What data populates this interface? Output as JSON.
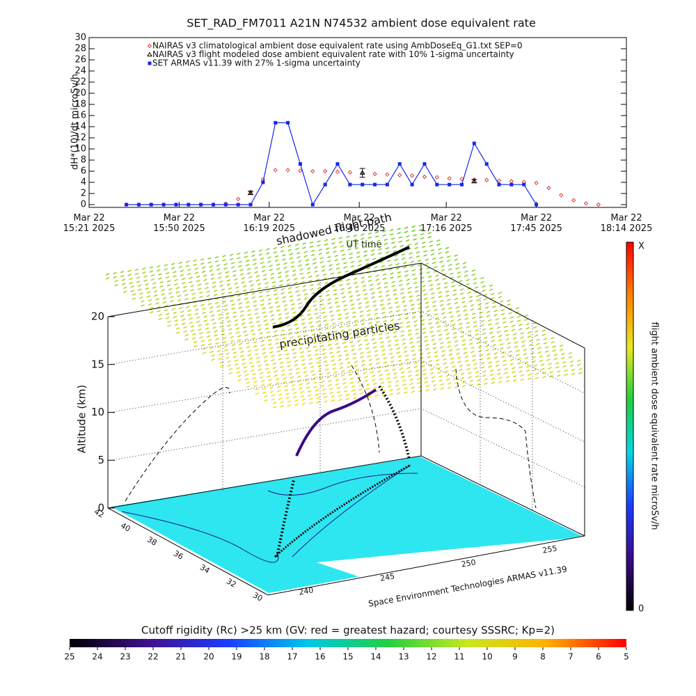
{
  "chart_data": [
    {
      "type": "line",
      "title": "SET_RAD_FM7011  A21N N74532 ambient dose equivalent rate",
      "y_label": "dH*(10)/dt microSv/h",
      "x_label": "UT time",
      "x": [
        "2025-03-22T15:33",
        "2025-03-22T15:37",
        "2025-03-22T15:41",
        "2025-03-22T15:45",
        "2025-03-22T15:49",
        "2025-03-22T15:53",
        "2025-03-22T15:57",
        "2025-03-22T16:01",
        "2025-03-22T16:05",
        "2025-03-22T16:09",
        "2025-03-22T16:13",
        "2025-03-22T16:17",
        "2025-03-22T16:21",
        "2025-03-22T16:25",
        "2025-03-22T16:29",
        "2025-03-22T16:33",
        "2025-03-22T16:37",
        "2025-03-22T16:41",
        "2025-03-22T16:45",
        "2025-03-22T16:49",
        "2025-03-22T16:53",
        "2025-03-22T16:57",
        "2025-03-22T17:01",
        "2025-03-22T17:05",
        "2025-03-22T17:09",
        "2025-03-22T17:13",
        "2025-03-22T17:17",
        "2025-03-22T17:21",
        "2025-03-22T17:25",
        "2025-03-22T17:29",
        "2025-03-22T17:33",
        "2025-03-22T17:37",
        "2025-03-22T17:41",
        "2025-03-22T17:45",
        "2025-03-22T17:49",
        "2025-03-22T17:53",
        "2025-03-22T17:57",
        "2025-03-22T18:01",
        "2025-03-22T18:05"
      ],
      "series": [
        {
          "name": "NAIRAS v3 climatological ambient dose equivalent rate using AmbDoseEq_G1.txt SEP=0",
          "color": "#d42a2a",
          "marker": "diamond-open",
          "line": false,
          "values": [
            0,
            0,
            0,
            0,
            0,
            0,
            0,
            0,
            0.2,
            1,
            2.3,
            4.5,
            6.2,
            6.2,
            6.1,
            6,
            6,
            5.9,
            5.8,
            5.7,
            5.5,
            5.4,
            5.3,
            5.2,
            5,
            4.9,
            4.7,
            4.6,
            4.5,
            4.4,
            4.3,
            4.2,
            4.1,
            3.9,
            3,
            1.7,
            0.8,
            0.2,
            0
          ]
        },
        {
          "name": "NAIRAS v3 flight modeled dose ambient equivalent rate with 10% 1-sigma uncertainty",
          "color": "#000000",
          "marker": "triangle",
          "line": false,
          "values": [
            null,
            null,
            null,
            null,
            null,
            null,
            null,
            null,
            null,
            null,
            2.1,
            null,
            null,
            null,
            null,
            null,
            null,
            null,
            null,
            5.7,
            null,
            null,
            null,
            null,
            null,
            null,
            null,
            null,
            4.2,
            null,
            null,
            null,
            null,
            null,
            null,
            null,
            null,
            null,
            null
          ],
          "errors": [
            null,
            null,
            null,
            null,
            null,
            null,
            null,
            null,
            null,
            null,
            0.3,
            null,
            null,
            null,
            null,
            null,
            null,
            null,
            null,
            0.8,
            null,
            null,
            null,
            null,
            null,
            null,
            null,
            null,
            0.3,
            null,
            null,
            null,
            null,
            null,
            null,
            null,
            null,
            null,
            null
          ]
        },
        {
          "name": "SET ARMAS v11.39 with 27% 1-sigma uncertainty",
          "color": "#1428f0",
          "marker": "square",
          "line": true,
          "values": [
            0,
            0,
            0,
            0,
            0,
            0,
            0,
            0,
            0,
            0,
            0,
            4,
            14.7,
            14.7,
            7.3,
            0,
            3.6,
            7.3,
            3.6,
            3.6,
            3.6,
            3.6,
            7.3,
            3.6,
            7.3,
            3.6,
            3.6,
            3.6,
            11,
            7.3,
            3.6,
            3.6,
            3.6,
            0,
            null,
            null,
            null,
            null,
            null
          ]
        }
      ],
      "xlim": [
        "2025-03-22T15:21",
        "2025-03-22T18:14"
      ],
      "xticks": [
        {
          "value": "2025-03-22T15:21",
          "label": "Mar 22\n15:21 2025"
        },
        {
          "value": "2025-03-22T15:50",
          "label": "Mar 22\n15:50 2025"
        },
        {
          "value": "2025-03-22T16:19",
          "label": "Mar 22\n16:19 2025"
        },
        {
          "value": "2025-03-22T16:48",
          "label": "Mar 22\n16:48 2025"
        },
        {
          "value": "2025-03-22T17:16",
          "label": "Mar 22\n17:16 2025"
        },
        {
          "value": "2025-03-22T17:45",
          "label": "Mar 22\n17:45 2025"
        },
        {
          "value": "2025-03-22T18:14",
          "label": "Mar 22\n18:14 2025"
        }
      ],
      "ylim": [
        -0.5,
        30
      ],
      "yticks": [
        0,
        2,
        4,
        6,
        8,
        10,
        12,
        14,
        16,
        18,
        20,
        22,
        24,
        26,
        28,
        30
      ],
      "legend": "upper left"
    },
    {
      "type": "trajectory-3d",
      "z_label": "Altitude (km)",
      "zlim": [
        0,
        20
      ],
      "zticks": [
        0,
        5,
        10,
        15,
        20
      ],
      "lat_ticks": [
        42,
        40,
        38,
        36,
        34,
        32,
        30
      ],
      "lon_ticks": [
        240,
        245,
        250,
        255
      ],
      "annotations": [
        "shadowed flight path",
        "precipitating particles",
        "Space Environment Technologies ARMAS v11.39"
      ],
      "dose_colorbar": {
        "label": "flight ambient dose equivalent rate microSv/h",
        "tick_labels": [
          "0",
          "X"
        ],
        "colors": [
          "#000000",
          "#3a0a8a",
          "#1a3cff",
          "#00d8e8",
          "#20d040",
          "#e8e820",
          "#ff8000",
          "#ff0000"
        ]
      },
      "rigidity_colorbar": {
        "title": "Cutoff rigidity (Rc) >25 km (GV: red = greatest hazard; courtesy SSSRC; Kp=2)",
        "lim": [
          25,
          5
        ],
        "ticks": [
          25,
          24,
          23,
          22,
          21,
          20,
          19,
          18,
          17,
          16,
          15,
          14,
          13,
          12,
          11,
          10,
          9,
          8,
          7,
          6,
          5
        ],
        "colors": [
          "#000000",
          "#40108c",
          "#1a3cff",
          "#00c8e8",
          "#20d040",
          "#c8e820",
          "#ffb000",
          "#ff0000"
        ]
      }
    }
  ]
}
